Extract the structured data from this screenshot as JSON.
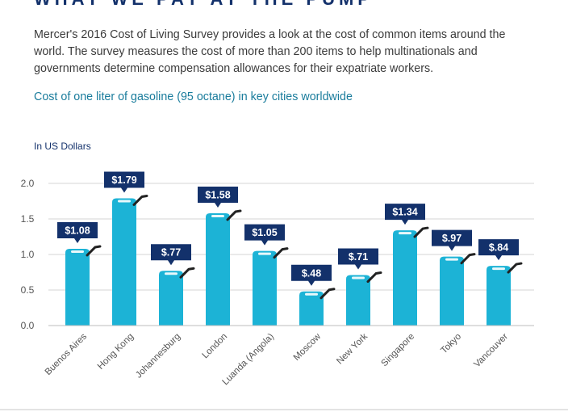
{
  "header": {
    "title": "WHAT WE PAY AT THE PUMP",
    "intro": "Mercer's 2016 Cost of Living Survey provides a look at the cost of common items around the world. The survey measures the cost of more than 200 items to help multinationals and governments determine compensation allowances for their expatriate workers.",
    "subtitle": "Cost of one liter of gasoline (95 octane) in key cities worldwide"
  },
  "colors": {
    "bar": "#1cb3d6",
    "label_bg": "#13316b",
    "nozzle": "#222222",
    "grid": "#d6d6d6",
    "axis_text": "#555555",
    "title": "#13316b",
    "subtitle": "#1a7c9c"
  },
  "chart_data": {
    "type": "bar",
    "ylabel": "In US Dollars",
    "ylim": [
      0,
      2.0
    ],
    "yticks": [
      "0.0",
      "0.5",
      "1.0",
      "1.5",
      "2.0"
    ],
    "grid": true,
    "categories": [
      "Buenos Aires",
      "Hong Kong",
      "Johannesburg",
      "London",
      "Luanda (Angola)",
      "Moscow",
      "New York",
      "Singapore",
      "Tokyo",
      "Vancouver"
    ],
    "values": [
      1.08,
      1.79,
      0.77,
      1.58,
      1.05,
      0.48,
      0.71,
      1.34,
      0.97,
      0.84
    ],
    "data_labels": [
      "$1.08",
      "$1.79",
      "$.77",
      "$1.58",
      "$1.05",
      "$.48",
      "$.71",
      "$1.34",
      "$.97",
      "$.84"
    ]
  }
}
